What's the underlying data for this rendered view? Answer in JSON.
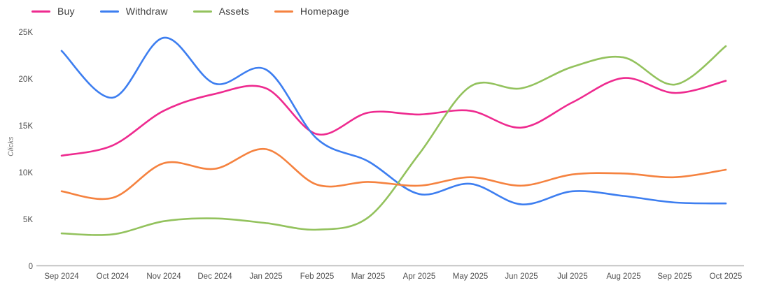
{
  "page": {
    "background_color": "#ffffff"
  },
  "chart_data": {
    "type": "line",
    "title": "",
    "xlabel": "",
    "ylabel": "Clicks",
    "categories": [
      "Sep 2024",
      "Oct 2024",
      "Nov 2024",
      "Dec 2024",
      "Jan 2025",
      "Feb 2025",
      "Mar 2025",
      "Apr 2025",
      "May 2025",
      "Jun 2025",
      "Jul 2025",
      "Aug 2025",
      "Sep 2025",
      "Oct 2025"
    ],
    "series": [
      {
        "name": "Buy",
        "color": "#ee2a8f",
        "values": [
          11800,
          12900,
          16600,
          18400,
          19000,
          14100,
          16400,
          16200,
          16600,
          14800,
          17500,
          20100,
          18500,
          19800
        ]
      },
      {
        "name": "Withdraw",
        "color": "#3d7ef0",
        "values": [
          23000,
          18000,
          24400,
          19500,
          21000,
          13600,
          11200,
          7700,
          8800,
          6600,
          8000,
          7500,
          6800,
          6700
        ]
      },
      {
        "name": "Assets",
        "color": "#93c25d",
        "values": [
          3500,
          3400,
          4800,
          5100,
          4600,
          3900,
          5200,
          12000,
          19200,
          19000,
          21300,
          22300,
          19400,
          23500
        ]
      },
      {
        "name": "Homepage",
        "color": "#f5823f",
        "values": [
          8000,
          7300,
          11000,
          10400,
          12500,
          8700,
          9000,
          8600,
          9500,
          8600,
          9800,
          9900,
          9500,
          10300
        ]
      }
    ],
    "ylim": [
      0,
      25000
    ],
    "y_tick_labels": [
      "0",
      "5K",
      "10K",
      "15K",
      "20K",
      "25K"
    ],
    "y_tick_values": [
      0,
      5000,
      10000,
      15000,
      20000,
      25000
    ],
    "grid": false,
    "legend_position": "top-left",
    "axis_color": "#b3b3b3",
    "tick_text_color": "#4f4f4f",
    "line_width": 2.6
  }
}
